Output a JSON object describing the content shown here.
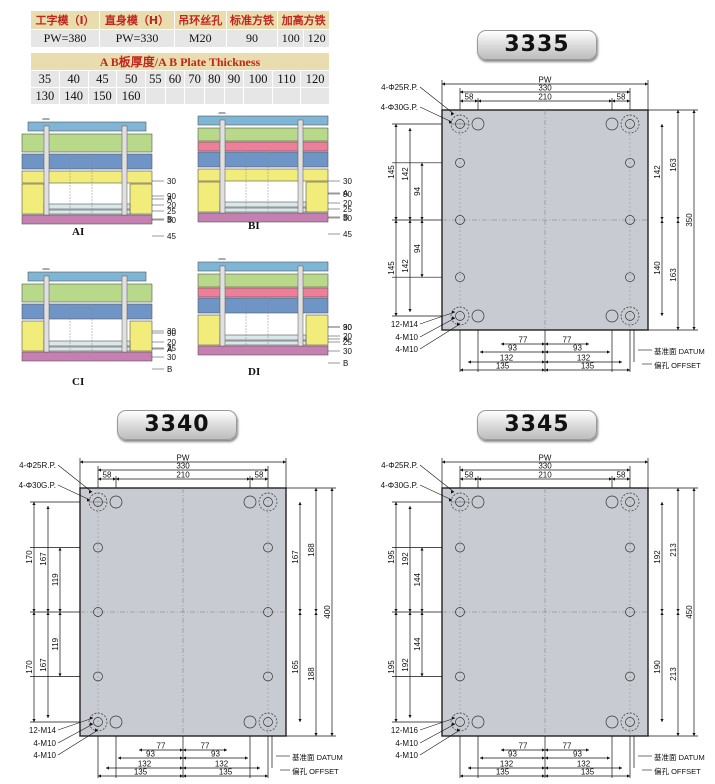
{
  "spec_table": {
    "headers": [
      "工字模（I）",
      "直身模（H）",
      "吊环丝孔",
      "标准方铁",
      "加高方铁"
    ],
    "values": [
      "PW=380",
      "PW=330",
      "M20",
      "90",
      "100",
      "120"
    ]
  },
  "plate_thickness": {
    "title": "A B板厚度/A B Plate Thickness",
    "row1": [
      "35",
      "40",
      "45",
      "50",
      "55",
      "60",
      "70",
      "80",
      "90",
      "100",
      "110",
      "120"
    ],
    "row2": [
      "130",
      "140",
      "150",
      "160"
    ]
  },
  "mold_sections": [
    {
      "label": "AI",
      "dims": [
        "30",
        "A",
        "B",
        "45",
        "90",
        "20",
        "25",
        "30"
      ]
    },
    {
      "label": "BI",
      "dims": [
        "30",
        "A",
        "B",
        "45",
        "90",
        "20",
        "25",
        "30"
      ]
    },
    {
      "label": "CI",
      "dims": [
        "30",
        "A",
        "B",
        "90",
        "20",
        "25",
        "30"
      ]
    },
    {
      "label": "DI",
      "dims": [
        "30",
        "A",
        "B",
        "90",
        "20",
        "25",
        "30"
      ]
    }
  ],
  "plans": [
    {
      "model": "3335",
      "pw": "PW",
      "w330": "330",
      "w210": "210",
      "w58": "58",
      "rp": "4-Φ25R.P.",
      "gp": "4-Φ30G.P.",
      "left_outer": [
        "145",
        "145"
      ],
      "left_mid": [
        "142",
        "142"
      ],
      "left_inner": [
        "94",
        "94"
      ],
      "right_inner": [
        "142",
        "140"
      ],
      "right_outer": [
        "163",
        "163"
      ],
      "height": "350",
      "bot_77": "77",
      "bot_93": "93",
      "bot_132": "132",
      "bot_135": "135",
      "screw1": "12-M14",
      "screw2": "4-M10",
      "screw3": "4-M10",
      "datum": "基准面 DATUM",
      "offset": "偏孔 OFFSET"
    },
    {
      "model": "3340",
      "pw": "PW",
      "w330": "330",
      "w210": "210",
      "w58": "58",
      "rp": "4-Φ25R.P.",
      "gp": "4-Φ30G.P.",
      "left_outer": [
        "170",
        "170"
      ],
      "left_mid": [
        "167",
        "167"
      ],
      "left_inner": [
        "119",
        "119"
      ],
      "right_inner": [
        "167",
        "165"
      ],
      "right_outer": [
        "188",
        "188"
      ],
      "height": "400",
      "bot_77": "77",
      "bot_93": "93",
      "bot_132": "132",
      "bot_135": "135",
      "screw1": "12-M14",
      "screw2": "4-M10",
      "screw3": "4-M10",
      "datum": "基准面 DATUM",
      "offset": "偏孔 OFFSET"
    },
    {
      "model": "3345",
      "pw": "PW",
      "w330": "330",
      "w210": "210",
      "w58": "58",
      "rp": "4-Φ25R.P.",
      "gp": "4-Φ30G.P.",
      "left_outer": [
        "195",
        "195"
      ],
      "left_mid": [
        "192",
        "192"
      ],
      "left_inner": [
        "144",
        "144"
      ],
      "right_inner": [
        "192",
        "190"
      ],
      "right_outer": [
        "213",
        "213"
      ],
      "height": "450",
      "bot_77": "77",
      "bot_93": "93",
      "bot_132": "132",
      "bot_135": "135",
      "screw1": "12-M16",
      "screw2": "4-M10",
      "screw3": "4-M10",
      "datum": "基准面 DATUM",
      "offset": "偏孔 OFFSET"
    }
  ]
}
